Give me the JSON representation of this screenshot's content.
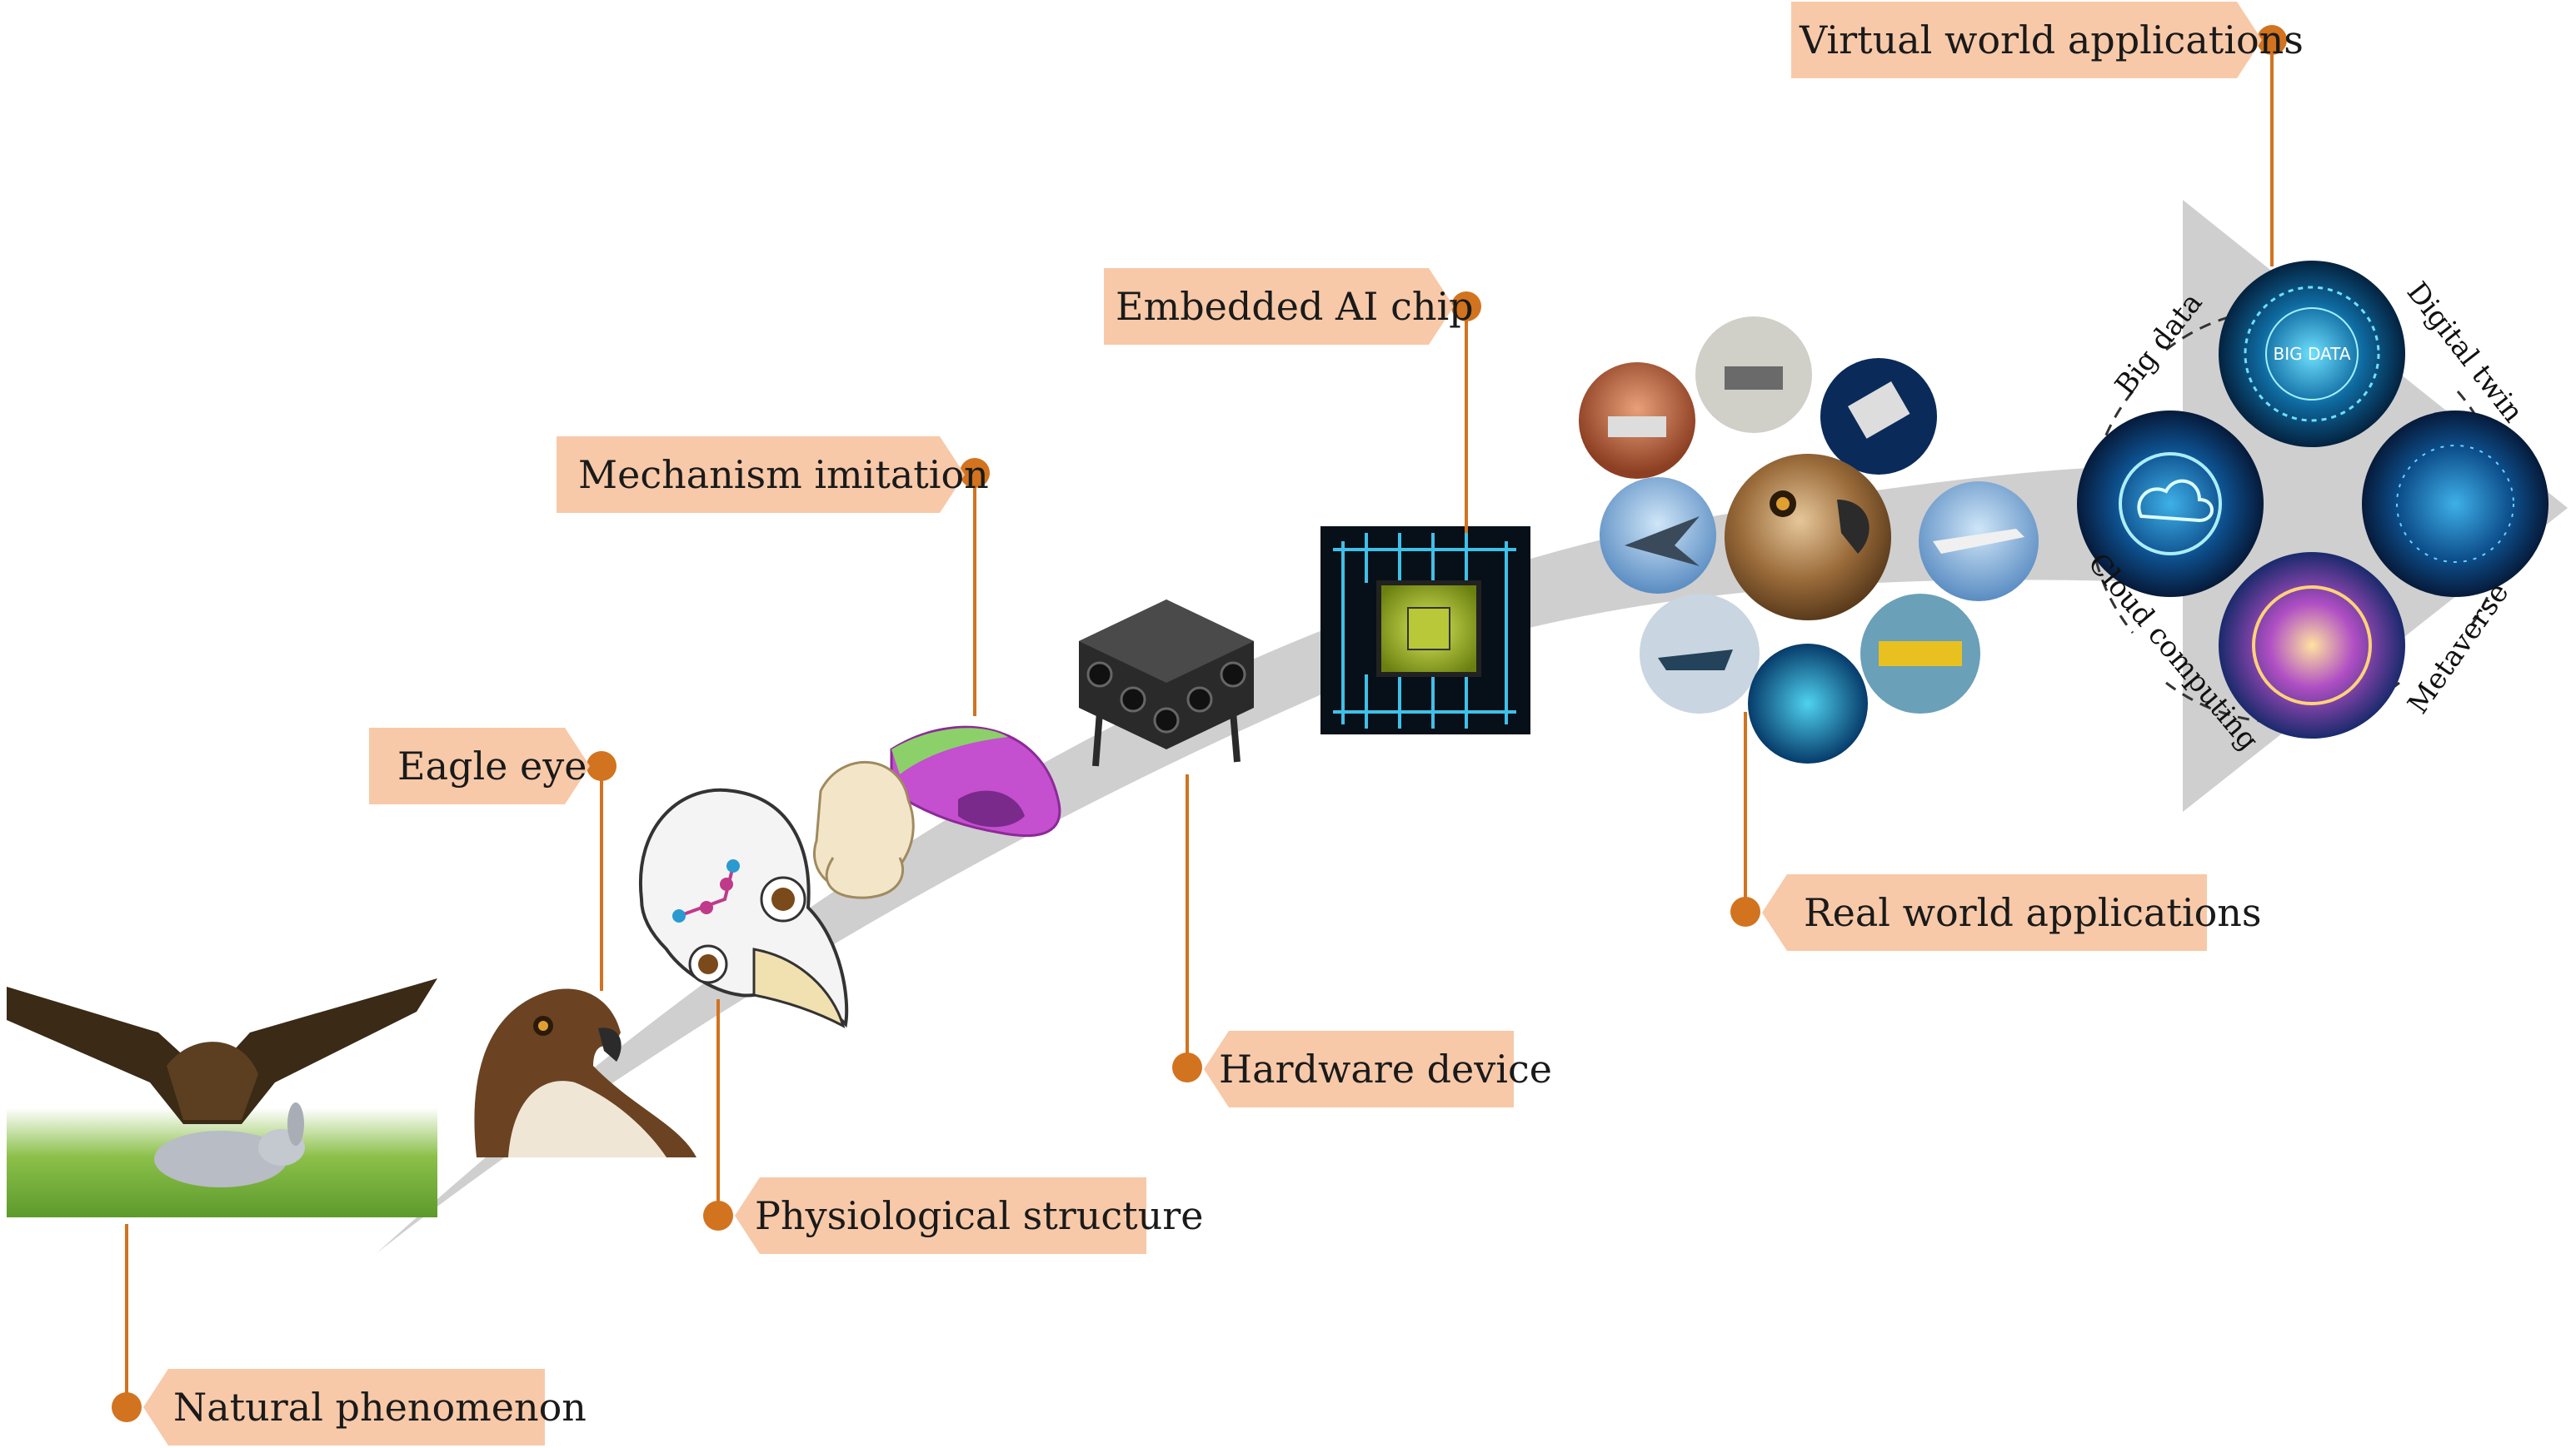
{
  "labels": {
    "natural": "Natural phenomenon",
    "eagle_eye": "Eagle eye",
    "physio": "Physiological structure",
    "mechanism": "Mechanism imitation",
    "hardware": "Hardware device",
    "chip": "Embedded AI chip",
    "real_world": "Real world applications",
    "virtual_world": "Virtual world applications"
  },
  "virtual": {
    "big_data": "Big data",
    "digital_twin": "Digital twin",
    "cloud_computing": "Cloud computing",
    "metaverse": "Metaverse",
    "big_data_badge": "BIG DATA"
  },
  "colors": {
    "accent": "#d2731f",
    "tag_fill": "#f7c9a8",
    "arrow": "#cfcfcf"
  }
}
